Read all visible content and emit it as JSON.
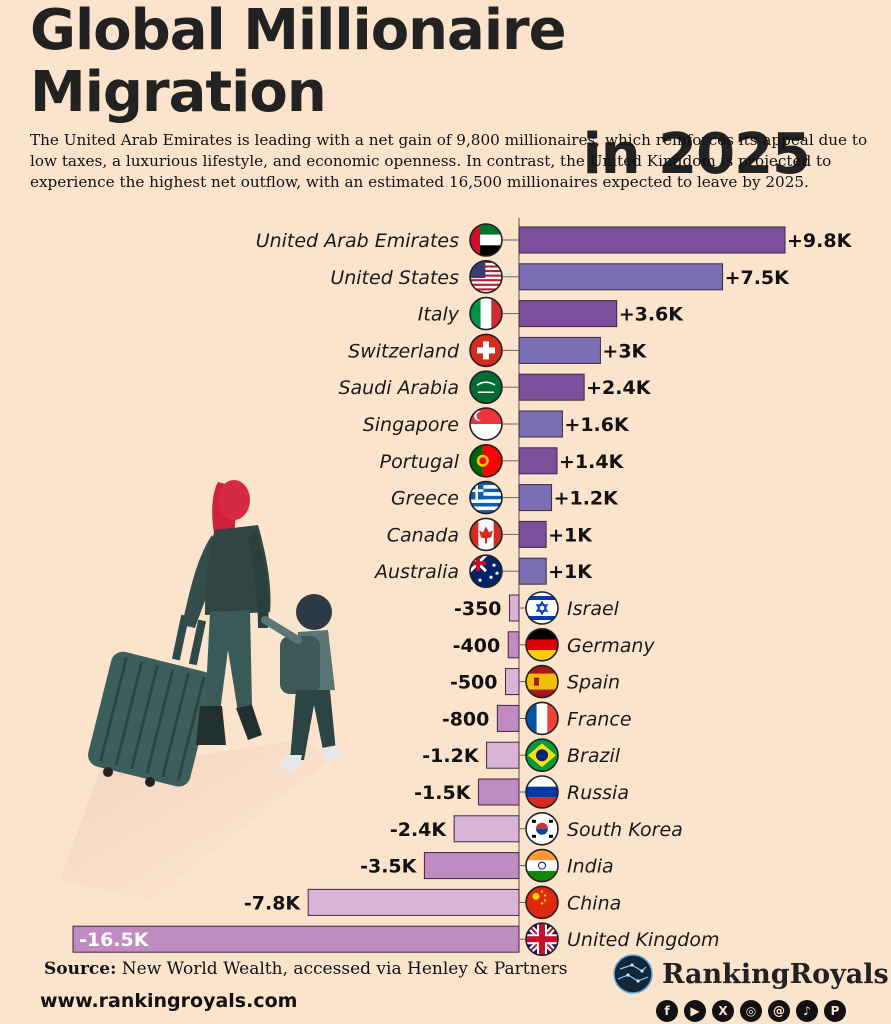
{
  "header": {
    "title_line1": "Global Millionaire Migration",
    "title_line2": "in 2025",
    "subtitle": "The United Arab Emirates is leading with a net gain of 9,800 millionaires, which reinforces its appeal due to low taxes, a luxurious lifestyle, and economic openness. In contrast, the United Kingdom is projected to experience the highest net outflow, with an estimated 16,500 millionaires expected to leave by 2025."
  },
  "chart_data": {
    "type": "bar",
    "orientation": "horizontal",
    "categories": [
      "United Arab Emirates",
      "United States",
      "Italy",
      "Switzerland",
      "Saudi Arabia",
      "Singapore",
      "Portugal",
      "Greece",
      "Canada",
      "Australia",
      "Israel",
      "Germany",
      "Spain",
      "France",
      "Brazil",
      "Russia",
      "South Korea",
      "India",
      "China",
      "United Kingdom"
    ],
    "values": [
      9800,
      7500,
      3600,
      3000,
      2400,
      1600,
      1400,
      1200,
      1000,
      1000,
      -350,
      -400,
      -500,
      -800,
      -1200,
      -1500,
      -2400,
      -3500,
      -7800,
      -16500
    ],
    "labels": [
      "+9.8K",
      "+7.5K",
      "+3.6K",
      "+3K",
      "+2.4K",
      "+1.6K",
      "+1.4K",
      "+1.2K",
      "+1K",
      "+1K",
      "-350",
      "-400",
      "-500",
      "-800",
      "-1.2K",
      "-1.5K",
      "-2.4K",
      "-3.5K",
      "-7.8K",
      "-16.5K"
    ],
    "flags": [
      "uae-flag-icon",
      "usa-flag-icon",
      "italy-flag-icon",
      "switzerland-flag-icon",
      "saudi-arabia-flag-icon",
      "singapore-flag-icon",
      "portugal-flag-icon",
      "greece-flag-icon",
      "canada-flag-icon",
      "australia-flag-icon",
      "israel-flag-icon",
      "germany-flag-icon",
      "spain-flag-icon",
      "france-flag-icon",
      "brazil-flag-icon",
      "russia-flag-icon",
      "south-korea-flag-icon",
      "india-flag-icon",
      "china-flag-icon",
      "uk-flag-icon"
    ],
    "xlim": [
      -16500,
      9800
    ],
    "grid": false,
    "legend": "none",
    "colors": {
      "positive": [
        "#7b4f9c",
        "#7a6fb3"
      ],
      "negative": [
        "#d9b4d6",
        "#c08bc0"
      ],
      "bar_outline": "#3a2a40"
    }
  },
  "footer": {
    "source_label": "Source:",
    "source_text": " New World Wealth, accessed via Henley & Partners",
    "website": "www.rankingroyals.com",
    "brand": "RankingRoyals",
    "social": [
      {
        "icon": "facebook-icon",
        "glyph": "f"
      },
      {
        "icon": "youtube-icon",
        "glyph": "▶"
      },
      {
        "icon": "x-icon",
        "glyph": "X"
      },
      {
        "icon": "instagram-icon",
        "glyph": "◎"
      },
      {
        "icon": "threads-icon",
        "glyph": "@"
      },
      {
        "icon": "tiktok-icon",
        "glyph": "♪"
      },
      {
        "icon": "pinterest-icon",
        "glyph": "P"
      }
    ]
  }
}
